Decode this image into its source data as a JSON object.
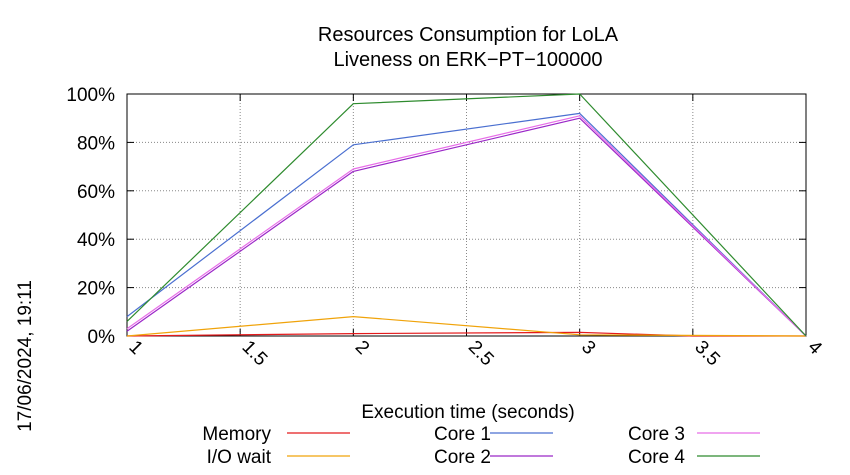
{
  "chart_data": {
    "type": "line",
    "title_lines": [
      "Resources Consumption for LoLA",
      "Liveness on ERK−PT−100000"
    ],
    "xlabel": "Execution time (seconds)",
    "ylabel": "",
    "side_label": "17/06/2024, 19:11",
    "xlim": [
      1,
      4
    ],
    "ylim": [
      0,
      100
    ],
    "x_ticks": [
      1,
      1.5,
      2,
      2.5,
      3,
      3.5,
      4
    ],
    "x_tick_labels": [
      "1",
      "1.5",
      "2",
      "2.5",
      "3",
      "3.5",
      "4"
    ],
    "y_ticks": [
      0,
      20,
      40,
      60,
      80,
      100
    ],
    "y_tick_labels": [
      "0%",
      "20%",
      "40%",
      "60%",
      "80%",
      "100%"
    ],
    "grid": true,
    "legend_position": "bottom",
    "series": [
      {
        "name": "Memory",
        "color": "#e41a1c",
        "x": [
          1,
          2,
          3,
          3.5,
          4
        ],
        "values": [
          0,
          1,
          1.5,
          0,
          0
        ]
      },
      {
        "name": "I/O wait",
        "color": "#f0a30a",
        "x": [
          1,
          2,
          3,
          4
        ],
        "values": [
          0,
          8,
          0.5,
          0
        ]
      },
      {
        "name": "Core 1",
        "color": "#4a6fd0",
        "x": [
          1,
          2,
          3,
          4
        ],
        "values": [
          8,
          79,
          92,
          0
        ]
      },
      {
        "name": "Core 2",
        "color": "#9b27c8",
        "x": [
          1,
          2,
          3,
          4
        ],
        "values": [
          2,
          68,
          90,
          0
        ]
      },
      {
        "name": "Core 3",
        "color": "#e76ee8",
        "x": [
          1,
          2,
          3,
          4
        ],
        "values": [
          3,
          69,
          91,
          0
        ]
      },
      {
        "name": "Core 4",
        "color": "#2e8b2e",
        "x": [
          1,
          2,
          3,
          4
        ],
        "values": [
          6,
          96,
          100,
          0
        ]
      }
    ]
  }
}
